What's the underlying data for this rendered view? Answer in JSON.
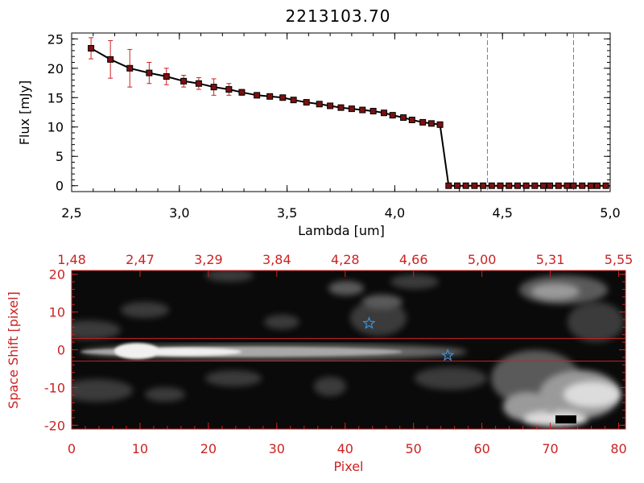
{
  "chart_data": [
    {
      "type": "line",
      "title": "2213103.70",
      "xlabel": "Lambda [um]",
      "ylabel": "Flux [mJy]",
      "xlim": [
        2.5,
        5.0
      ],
      "ylim": [
        -1,
        26
      ],
      "xticks": [
        "2.5",
        "3.0",
        "3.5",
        "4.0",
        "4.5",
        "5.0"
      ],
      "yticks": [
        "0",
        "5",
        "10",
        "15",
        "20",
        "25"
      ],
      "vlines": [
        4.43,
        4.83
      ],
      "colors": {
        "line": "#000000",
        "marker": "#7a1010",
        "error": "#cc2222",
        "vline": "#3a8fd8"
      },
      "series": [
        {
          "x": [
            2.59,
            2.68,
            2.77,
            2.86,
            2.94,
            3.02,
            3.09,
            3.16,
            3.23,
            3.29,
            3.36,
            3.42,
            3.48,
            3.53,
            3.59,
            3.65,
            3.7,
            3.75,
            3.8,
            3.85,
            3.9,
            3.95,
            3.99,
            4.04,
            4.08,
            4.13,
            4.17,
            4.21,
            4.25,
            4.29,
            4.33,
            4.37,
            4.41,
            4.45,
            4.49,
            4.53,
            4.57,
            4.61,
            4.65,
            4.69,
            4.72,
            4.76,
            4.8,
            4.83,
            4.87,
            4.91,
            4.94,
            4.98
          ],
          "y": [
            23.4,
            21.5,
            20.0,
            19.2,
            18.6,
            17.8,
            17.4,
            16.8,
            16.4,
            15.9,
            15.4,
            15.2,
            15.0,
            14.6,
            14.2,
            13.9,
            13.6,
            13.3,
            13.1,
            12.9,
            12.7,
            12.4,
            12.0,
            11.6,
            11.2,
            10.8,
            10.6,
            10.4,
            0,
            0,
            0,
            0,
            0,
            0,
            0,
            0,
            0,
            0,
            0,
            0,
            0,
            0,
            0,
            0,
            0,
            0,
            0,
            0
          ],
          "err": [
            1.8,
            3.2,
            3.2,
            1.8,
            1.4,
            1.0,
            1.0,
            1.4,
            1.0,
            0.5,
            0.4,
            0.4,
            0.3,
            0.3,
            0.3,
            0.3,
            0.3,
            0.3,
            0.3,
            0.3,
            0.3,
            0.3,
            0.3,
            0.3,
            0.3,
            0.3,
            0.3,
            0.3,
            0,
            0,
            0,
            0,
            0,
            0,
            0,
            0,
            0,
            0,
            0,
            0,
            0,
            0,
            0,
            0,
            0,
            0,
            0,
            0
          ]
        }
      ]
    },
    {
      "type": "heatmap",
      "xlabel": "Pixel",
      "ylabel": "Space Shift [pixel]",
      "xlim": [
        0,
        81
      ],
      "ylim": [
        -21,
        21
      ],
      "xticks": [
        "0",
        "10",
        "20",
        "30",
        "40",
        "50",
        "60",
        "70",
        "80"
      ],
      "yticks": [
        "-20",
        "-10",
        "0",
        "10",
        "20"
      ],
      "top_ticks": [
        "1.48",
        "2.47",
        "3.29",
        "3.84",
        "4.28",
        "4.66",
        "5.00",
        "5.31",
        "5.55"
      ],
      "hlines": [
        3,
        -3
      ],
      "stars": [
        {
          "x": 43.5,
          "y": 7
        },
        {
          "x": 55,
          "y": -1.5
        }
      ],
      "colors": {
        "frame": "#cc2222",
        "star": "#3a8fd8"
      }
    }
  ]
}
